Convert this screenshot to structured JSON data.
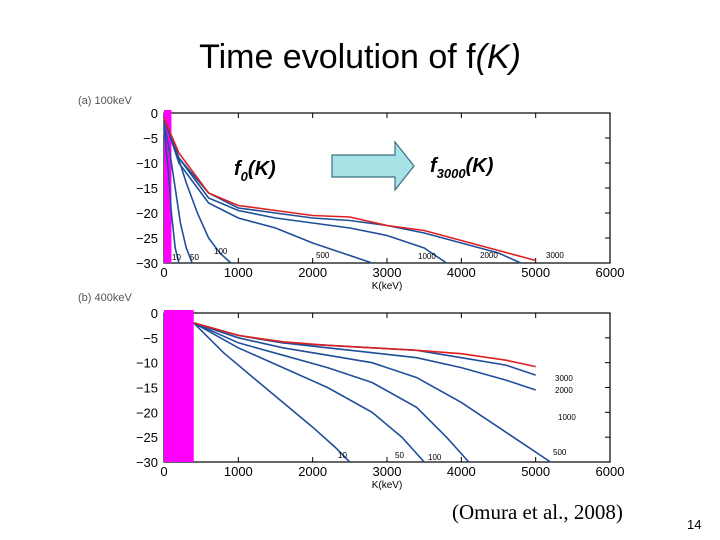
{
  "slide": {
    "title_prefix": "Time evolution of ",
    "title_f": "f",
    "title_k": "(K)",
    "citation": "(Omura et al., 2008)",
    "slide_number": "14"
  },
  "annotation": {
    "f0_letter": "f",
    "f0_sub": "0",
    "f0_arg": "(K)",
    "f3000_letter": "f",
    "f3000_sub": "3000",
    "f3000_arg": "(K)",
    "arrow_color": "#a7e2e6"
  },
  "colors": {
    "late_curve": "#e02020",
    "curves": "#1f4f9a",
    "initial_band": "#ff00ff"
  },
  "chart_data": [
    {
      "type": "line",
      "title": "(a) 100keV",
      "xlabel": "K(keV)",
      "ylabel": "",
      "xlim": [
        0,
        6000
      ],
      "ylim": [
        -30,
        0
      ],
      "xticks": [
        0,
        1000,
        2000,
        3000,
        4000,
        5000,
        6000
      ],
      "yticks": [
        0,
        -5,
        -10,
        -15,
        -20,
        -25,
        -30
      ],
      "initial_band": [
        0,
        100
      ],
      "series": [
        {
          "name": "10",
          "x": [
            0,
            60,
            100,
            150,
            200
          ],
          "y": [
            -3,
            -12,
            -20,
            -27,
            -30
          ]
        },
        {
          "name": "50",
          "x": [
            0,
            80,
            150,
            220,
            300,
            380
          ],
          "y": [
            -2,
            -8,
            -15,
            -22,
            -27,
            -30
          ]
        },
        {
          "name": "100",
          "x": [
            0,
            150,
            300,
            450,
            600,
            750,
            900
          ],
          "y": [
            -1,
            -7,
            -14,
            -20,
            -25,
            -28,
            -30
          ]
        },
        {
          "name": "500",
          "x": [
            0,
            200,
            600,
            1000,
            1500,
            2000,
            2400,
            2800
          ],
          "y": [
            -1,
            -10,
            -18,
            -21,
            -23,
            -26,
            -28,
            -30
          ]
        },
        {
          "name": "1000",
          "x": [
            0,
            200,
            600,
            1000,
            1500,
            2000,
            2500,
            3000,
            3500,
            3800
          ],
          "y": [
            -1,
            -9,
            -17,
            -19.5,
            -21,
            -22,
            -23,
            -24.5,
            -27,
            -30
          ]
        },
        {
          "name": "2000",
          "x": [
            0,
            200,
            600,
            1000,
            1500,
            2000,
            2500,
            3000,
            3500,
            4000,
            4500,
            4800
          ],
          "y": [
            -1,
            -9,
            -16,
            -19,
            -20,
            -21,
            -21.5,
            -22.5,
            -24,
            -26,
            -28,
            -30
          ]
        },
        {
          "name": "3000",
          "x": [
            0,
            200,
            600,
            1000,
            1500,
            2000,
            2500,
            3000,
            3500,
            4000,
            4500,
            5000
          ],
          "y": [
            -1,
            -8,
            -16,
            -18.5,
            -19.5,
            -20.5,
            -20.8,
            -22.5,
            -23.5,
            -25.5,
            -27.5,
            -29.5
          ]
        }
      ],
      "curve_labels": [
        "10",
        "50",
        "100",
        "500",
        "1000",
        "2000",
        "3000"
      ]
    },
    {
      "type": "line",
      "title": "(b) 400keV",
      "xlabel": "K(keV)",
      "ylabel": "",
      "xlim": [
        0,
        6000
      ],
      "ylim": [
        -30,
        0
      ],
      "xticks": [
        0,
        1000,
        2000,
        3000,
        4000,
        5000,
        6000
      ],
      "yticks": [
        0,
        -5,
        -10,
        -15,
        -20,
        -25,
        -30
      ],
      "initial_band": [
        0,
        400
      ],
      "series": [
        {
          "name": "10",
          "x": [
            400,
            800,
            1200,
            1600,
            2000,
            2300,
            2500
          ],
          "y": [
            -2,
            -8,
            -13,
            -18,
            -23,
            -27,
            -30
          ]
        },
        {
          "name": "50",
          "x": [
            400,
            1000,
            1600,
            2200,
            2800,
            3200,
            3500
          ],
          "y": [
            -2,
            -7,
            -11,
            -15,
            -20,
            -25,
            -30
          ]
        },
        {
          "name": "100",
          "x": [
            400,
            1000,
            1600,
            2200,
            2800,
            3400,
            3800,
            4100
          ],
          "y": [
            -2,
            -6,
            -8.5,
            -11,
            -14,
            -19,
            -25,
            -30
          ]
        },
        {
          "name": "500",
          "x": [
            400,
            1000,
            1600,
            2200,
            2800,
            3400,
            4000,
            4600,
            5200
          ],
          "y": [
            -2,
            -5,
            -7,
            -8.5,
            -10,
            -13,
            -18,
            -24,
            -30
          ]
        },
        {
          "name": "1000",
          "x": [
            400,
            1000,
            1600,
            2200,
            2800,
            3400,
            4000,
            4600,
            5000
          ],
          "y": [
            -2,
            -4.5,
            -6,
            -7,
            -8,
            -9,
            -11,
            -13.5,
            -15.5
          ]
        },
        {
          "name": "2000",
          "x": [
            400,
            1000,
            1600,
            2200,
            2800,
            3400,
            4000,
            4600,
            5000
          ],
          "y": [
            -2,
            -4.5,
            -6,
            -6.5,
            -7,
            -7.5,
            -9,
            -10.5,
            -12.5
          ]
        },
        {
          "name": "3000",
          "x": [
            400,
            1000,
            1600,
            2200,
            2800,
            3400,
            4000,
            4600,
            5000
          ],
          "y": [
            -2,
            -4.5,
            -5.8,
            -6.5,
            -7,
            -7.5,
            -8.2,
            -9.5,
            -10.8
          ]
        }
      ],
      "curve_labels": [
        "10",
        "50",
        "100",
        "500",
        "1000",
        "2000",
        "3000"
      ]
    }
  ]
}
